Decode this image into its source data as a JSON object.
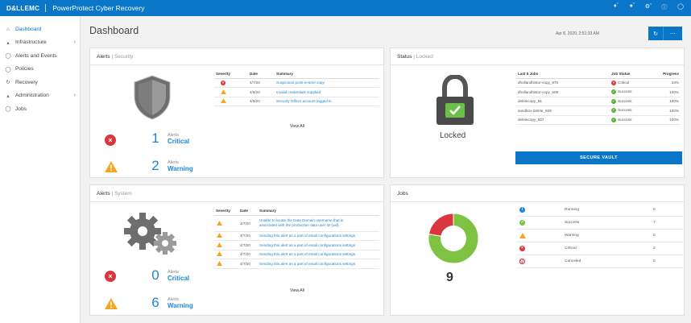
{
  "header": {
    "brand": "D&LLEMC",
    "product": "PowerProtect Cyber Recovery",
    "icons": [
      "bell-icon",
      "user-icon",
      "gear-icon",
      "info-icon",
      "help-icon"
    ]
  },
  "sidebar": {
    "items": [
      {
        "label": "Dashboard",
        "icon": "home-icon",
        "active": true
      },
      {
        "label": "Infrastructure",
        "icon": "infrastructure-icon",
        "chevron": true
      },
      {
        "label": "Alerts and Events",
        "icon": "bell-icon"
      },
      {
        "label": "Policies",
        "icon": "shield-icon"
      },
      {
        "label": "Recovery",
        "icon": "recovery-icon"
      },
      {
        "label": "Administration",
        "icon": "admin-icon",
        "chevron": true
      },
      {
        "label": "Jobs",
        "icon": "jobs-icon"
      }
    ]
  },
  "page": {
    "title": "Dashboard",
    "timestamp": "Apr 8, 2020, 2:51:33 AM"
  },
  "alerts_security": {
    "title": "Alerts",
    "subtitle": "Security",
    "critical_count": "1",
    "critical_small": "Alerts",
    "critical_label": "Critical",
    "warning_count": "2",
    "warning_small": "Alerts",
    "warning_label": "Warning",
    "columns": [
      "Severity",
      "Date",
      "Summary"
    ],
    "rows": [
      {
        "severity": "critical",
        "date": "4/7/20",
        "summary": "Suspicious point-in-time copy"
      },
      {
        "severity": "warning",
        "date": "4/6/20",
        "summary": "Invalid credentials supplied"
      },
      {
        "severity": "warning",
        "date": "4/6/20",
        "summary": "Security Officer account logged in"
      }
    ],
    "view_all": "View All"
  },
  "status": {
    "title": "Status",
    "subtitle": "Locked",
    "state": "Locked",
    "columns": [
      "Last 5 Jobs",
      "Job Status",
      "Progress"
    ],
    "jobs": [
      {
        "name": "dhollandhistor-copy_976",
        "status": "Critical",
        "kind": "critical",
        "progress": "33%"
      },
      {
        "name": "dhollandhistor-copy_908",
        "status": "Success",
        "kind": "success",
        "progress": "100%"
      },
      {
        "name": "deletecopy_51",
        "status": "Success",
        "kind": "success",
        "progress": "100%"
      },
      {
        "name": "sandbox-delete_939",
        "status": "Success",
        "kind": "success",
        "progress": "100%"
      },
      {
        "name": "deletecopy_557",
        "status": "Success",
        "kind": "success",
        "progress": "100%"
      }
    ],
    "secure_button": "SECURE VAULT"
  },
  "alerts_system": {
    "title": "Alerts",
    "subtitle": "System",
    "critical_count": "0",
    "critical_small": "Alerts",
    "critical_label": "Critical",
    "warning_count": "6",
    "warning_small": "Alerts",
    "warning_label": "Warning",
    "columns": [
      "Severity",
      "Date",
      "Summary"
    ],
    "rows": [
      {
        "severity": "warning",
        "date": "4/7/20",
        "summary": "Unable to locate the Data Domain username that is",
        "summary2": "associated with the production data user ID (uid)."
      },
      {
        "severity": "warning",
        "date": "4/7/20",
        "summary": "Sending this alert as a part of email configurations settings"
      },
      {
        "severity": "warning",
        "date": "4/7/20",
        "summary": "Sending this alert as a part of email configurations settings"
      },
      {
        "severity": "warning",
        "date": "4/7/20",
        "summary": "Sending this alert as a part of email configurations settings"
      },
      {
        "severity": "warning",
        "date": "4/7/20",
        "summary": "Sending this alert as a part of email configurations settings"
      }
    ],
    "view_all": "View All"
  },
  "jobs": {
    "title": "Jobs",
    "total": "9",
    "legend": [
      {
        "name": "Running",
        "count": "0",
        "kind": "running",
        "color": "#1c86d4"
      },
      {
        "name": "Success",
        "count": "7",
        "kind": "success",
        "color": "#7dc242"
      },
      {
        "name": "Warning",
        "count": "0",
        "kind": "warning",
        "color": "#f5a623"
      },
      {
        "name": "Critical",
        "count": "2",
        "kind": "critical",
        "color": "#d9363e"
      },
      {
        "name": "Canceled",
        "count": "0",
        "kind": "canceled",
        "color": "#d9363e"
      }
    ]
  }
}
